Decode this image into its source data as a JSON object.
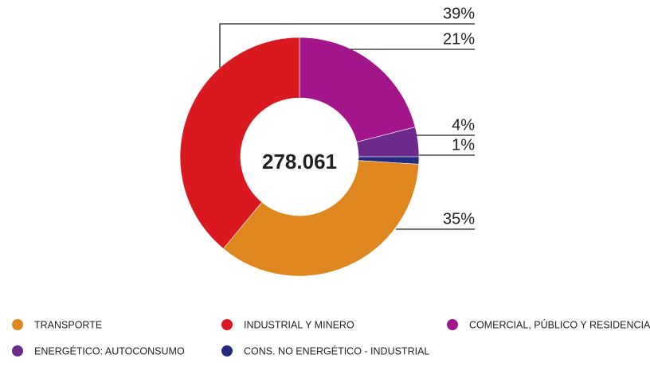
{
  "chart_data": {
    "type": "donut",
    "center_label": "278.061",
    "categories": [
      "TRANSPORTE",
      "INDUSTRIAL Y MINERO",
      "COMERCIAL, PÚBLICO Y RESIDENCIAL",
      "ENERGÉTICO: AUTOCONSUMO",
      "CONS. NO ENERGÉTICO - INDUSTRIAL"
    ],
    "values": [
      35,
      39,
      21,
      4,
      1
    ],
    "value_labels": [
      "35%",
      "39%",
      "21%",
      "4%",
      "1%"
    ],
    "colors": [
      "#df861f",
      "#d9191f",
      "#a3168b",
      "#6b2a8c",
      "#262b7f"
    ],
    "legend": "bottom"
  }
}
